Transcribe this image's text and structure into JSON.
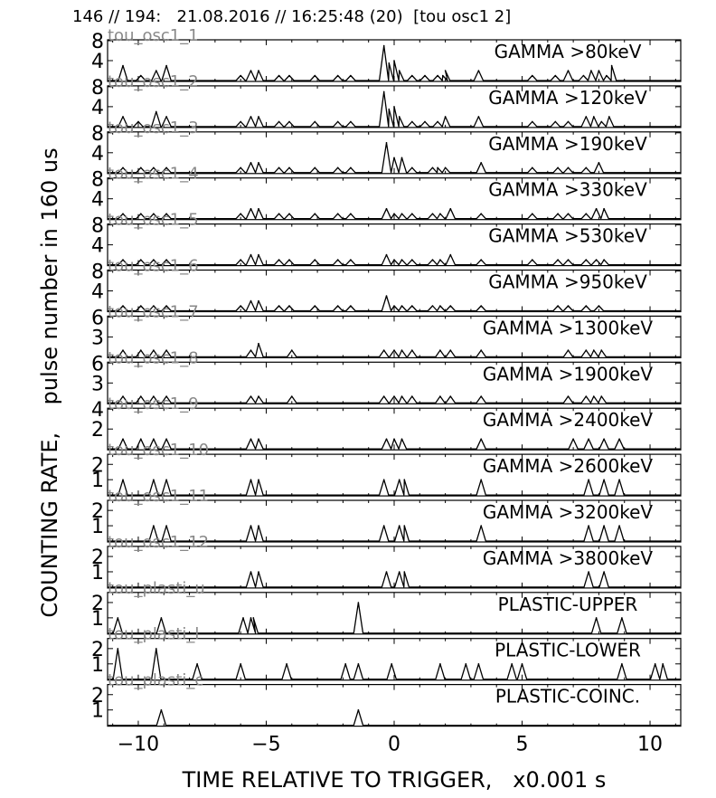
{
  "header": {
    "text": "146 // 194:   21.08.2016 // 16:25:48 (20)  [tou osc1 2]"
  },
  "chart_data": {
    "type": "line",
    "xlabel": "TIME RELATIVE TO TRIGGER,   x0.001 s",
    "ylabel": "COUNTING RATE,    pulse number in 160 us",
    "xlim": [
      -11.2,
      11.2
    ],
    "xticks": [
      -10,
      -5,
      0,
      5,
      10
    ],
    "xtick_labels": [
      "−10",
      "−5",
      "0",
      "5",
      "10"
    ],
    "panels": [
      {
        "channel": "tou_osc1_1",
        "label": "GAMMA >80keV",
        "ylim": [
          0,
          8
        ],
        "yticks": [
          8,
          4
        ],
        "points": [
          [
            -10.6,
            3
          ],
          [
            -9.9,
            1
          ],
          [
            -9.3,
            2
          ],
          [
            -8.9,
            3
          ],
          [
            -6.0,
            1
          ],
          [
            -5.6,
            2
          ],
          [
            -5.3,
            2
          ],
          [
            -4.5,
            1
          ],
          [
            -4.1,
            1
          ],
          [
            -3.1,
            1
          ],
          [
            -2.2,
            1
          ],
          [
            -1.7,
            1
          ],
          [
            -0.4,
            7
          ],
          [
            -0.2,
            3.5
          ],
          [
            0.0,
            4
          ],
          [
            0.2,
            2
          ],
          [
            0.7,
            1
          ],
          [
            1.2,
            1
          ],
          [
            1.7,
            1
          ],
          [
            1.9,
            1
          ],
          [
            2.0,
            2
          ],
          [
            3.3,
            2
          ],
          [
            5.4,
            1
          ],
          [
            6.3,
            1
          ],
          [
            6.8,
            2
          ],
          [
            7.4,
            1
          ],
          [
            7.7,
            2
          ],
          [
            8.0,
            2
          ],
          [
            8.3,
            1
          ],
          [
            8.5,
            3
          ]
        ]
      },
      {
        "channel": "tou_osc1_2",
        "label": "GAMMA >120keV",
        "ylim": [
          0,
          8
        ],
        "yticks": [
          8,
          4
        ],
        "points": [
          [
            -10.6,
            2
          ],
          [
            -10.0,
            1
          ],
          [
            -9.3,
            3
          ],
          [
            -8.9,
            2
          ],
          [
            -6.0,
            1
          ],
          [
            -5.6,
            2
          ],
          [
            -5.3,
            2
          ],
          [
            -4.5,
            1
          ],
          [
            -4.1,
            1
          ],
          [
            -3.1,
            1
          ],
          [
            -2.2,
            1
          ],
          [
            -1.7,
            1
          ],
          [
            -0.4,
            7
          ],
          [
            -0.2,
            3.5
          ],
          [
            0.0,
            4
          ],
          [
            0.2,
            2
          ],
          [
            0.7,
            1
          ],
          [
            1.2,
            1
          ],
          [
            1.7,
            1
          ],
          [
            2.0,
            2
          ],
          [
            3.3,
            2
          ],
          [
            5.4,
            1
          ],
          [
            6.3,
            1
          ],
          [
            6.8,
            1
          ],
          [
            7.5,
            2
          ],
          [
            7.8,
            2
          ],
          [
            8.1,
            1
          ],
          [
            8.4,
            2
          ]
        ]
      },
      {
        "channel": "tou_osc1_3",
        "label": "GAMMA >190keV",
        "ylim": [
          0,
          8
        ],
        "yticks": [
          8,
          4
        ],
        "points": [
          [
            -10.6,
            1
          ],
          [
            -9.9,
            1
          ],
          [
            -9.4,
            1
          ],
          [
            -8.9,
            1
          ],
          [
            -6.0,
            1
          ],
          [
            -5.6,
            2
          ],
          [
            -5.3,
            2
          ],
          [
            -4.5,
            1
          ],
          [
            -4.1,
            1
          ],
          [
            -3.1,
            1
          ],
          [
            -2.2,
            1
          ],
          [
            -1.7,
            1
          ],
          [
            -0.3,
            6
          ],
          [
            0.0,
            3
          ],
          [
            0.3,
            3
          ],
          [
            0.7,
            1
          ],
          [
            1.5,
            1
          ],
          [
            1.7,
            1
          ],
          [
            2.0,
            1
          ],
          [
            3.4,
            2
          ],
          [
            5.4,
            1
          ],
          [
            6.4,
            1
          ],
          [
            6.8,
            1
          ],
          [
            7.5,
            1
          ],
          [
            8.0,
            2
          ]
        ]
      },
      {
        "channel": "tou_osc1_4",
        "label": "GAMMA >330keV",
        "ylim": [
          0,
          8
        ],
        "yticks": [
          8,
          4
        ],
        "points": [
          [
            -10.6,
            1
          ],
          [
            -9.9,
            1
          ],
          [
            -9.4,
            1
          ],
          [
            -8.9,
            1
          ],
          [
            -6.0,
            1
          ],
          [
            -5.6,
            2
          ],
          [
            -5.3,
            2
          ],
          [
            -4.5,
            1
          ],
          [
            -4.1,
            1
          ],
          [
            -3.1,
            1
          ],
          [
            -2.2,
            1
          ],
          [
            -1.7,
            1
          ],
          [
            -0.3,
            2
          ],
          [
            0.0,
            1
          ],
          [
            0.3,
            1
          ],
          [
            0.7,
            1
          ],
          [
            1.5,
            1
          ],
          [
            1.8,
            1
          ],
          [
            2.2,
            2
          ],
          [
            3.4,
            1
          ],
          [
            5.4,
            1
          ],
          [
            6.4,
            1
          ],
          [
            6.8,
            1
          ],
          [
            7.5,
            1
          ],
          [
            7.9,
            2
          ],
          [
            8.2,
            2
          ]
        ]
      },
      {
        "channel": "tou_osc1_5",
        "label": "GAMMA >530keV",
        "ylim": [
          0,
          8
        ],
        "yticks": [
          8,
          4
        ],
        "points": [
          [
            -10.6,
            1
          ],
          [
            -9.9,
            1
          ],
          [
            -9.4,
            1
          ],
          [
            -8.9,
            1
          ],
          [
            -6.0,
            1
          ],
          [
            -5.6,
            2
          ],
          [
            -5.3,
            2
          ],
          [
            -4.5,
            1
          ],
          [
            -4.1,
            1
          ],
          [
            -3.1,
            1
          ],
          [
            -2.2,
            1
          ],
          [
            -1.7,
            1
          ],
          [
            -0.3,
            2
          ],
          [
            0.0,
            1
          ],
          [
            0.3,
            1
          ],
          [
            0.7,
            1
          ],
          [
            1.5,
            1
          ],
          [
            1.8,
            1
          ],
          [
            2.2,
            2
          ],
          [
            3.4,
            1
          ],
          [
            5.4,
            1
          ],
          [
            6.4,
            1
          ],
          [
            6.8,
            1
          ],
          [
            7.5,
            1
          ],
          [
            7.9,
            1
          ],
          [
            8.2,
            1
          ]
        ]
      },
      {
        "channel": "tou_osc1_6",
        "label": "GAMMA >950keV",
        "ylim": [
          0,
          8
        ],
        "yticks": [
          8,
          4
        ],
        "points": [
          [
            -10.6,
            1
          ],
          [
            -9.9,
            1
          ],
          [
            -9.4,
            1
          ],
          [
            -8.9,
            1
          ],
          [
            -6.0,
            1
          ],
          [
            -5.6,
            2
          ],
          [
            -5.3,
            2
          ],
          [
            -4.5,
            1
          ],
          [
            -4.1,
            1
          ],
          [
            -3.1,
            1
          ],
          [
            -2.2,
            1
          ],
          [
            -1.7,
            1
          ],
          [
            -0.3,
            3
          ],
          [
            0.0,
            1
          ],
          [
            0.3,
            1
          ],
          [
            0.7,
            1
          ],
          [
            1.5,
            1
          ],
          [
            1.8,
            1
          ],
          [
            2.2,
            1
          ],
          [
            3.4,
            1
          ],
          [
            6.4,
            1
          ],
          [
            6.8,
            1
          ],
          [
            7.5,
            1
          ],
          [
            8.0,
            1
          ]
        ]
      },
      {
        "channel": "tou_osc1_7",
        "label": "GAMMA >1300keV",
        "ylim": [
          0,
          6
        ],
        "yticks": [
          6,
          3
        ],
        "points": [
          [
            -10.6,
            1
          ],
          [
            -9.9,
            1
          ],
          [
            -9.4,
            1
          ],
          [
            -8.9,
            1
          ],
          [
            -5.6,
            1
          ],
          [
            -5.3,
            2
          ],
          [
            -4.0,
            1
          ],
          [
            -0.4,
            1
          ],
          [
            0.0,
            1
          ],
          [
            0.3,
            1
          ],
          [
            0.7,
            1
          ],
          [
            1.8,
            1
          ],
          [
            2.2,
            1
          ],
          [
            3.4,
            1
          ],
          [
            6.8,
            1
          ],
          [
            7.5,
            1
          ],
          [
            7.8,
            1
          ],
          [
            8.1,
            1
          ]
        ]
      },
      {
        "channel": "tou_osc1_8",
        "label": "GAMMA >1900keV",
        "ylim": [
          0,
          6
        ],
        "yticks": [
          6,
          3
        ],
        "points": [
          [
            -10.6,
            1
          ],
          [
            -9.9,
            1
          ],
          [
            -9.4,
            1
          ],
          [
            -8.9,
            1
          ],
          [
            -5.6,
            1
          ],
          [
            -5.3,
            1
          ],
          [
            -4.0,
            1
          ],
          [
            -0.4,
            1
          ],
          [
            0.0,
            1
          ],
          [
            0.3,
            1
          ],
          [
            0.7,
            1
          ],
          [
            1.8,
            1
          ],
          [
            2.2,
            1
          ],
          [
            3.4,
            1
          ],
          [
            6.8,
            1
          ],
          [
            7.5,
            1
          ],
          [
            7.8,
            1
          ],
          [
            8.1,
            1
          ]
        ]
      },
      {
        "channel": "tou_osc1_9",
        "label": "GAMMA >2400keV",
        "ylim": [
          0,
          4
        ],
        "yticks": [
          4,
          2
        ],
        "points": [
          [
            -10.6,
            1
          ],
          [
            -9.9,
            1
          ],
          [
            -9.4,
            1
          ],
          [
            -8.9,
            1
          ],
          [
            -5.6,
            1
          ],
          [
            -5.3,
            1
          ],
          [
            -0.3,
            1
          ],
          [
            0.0,
            1
          ],
          [
            0.3,
            1
          ],
          [
            3.4,
            1
          ],
          [
            7.0,
            1
          ],
          [
            7.6,
            1
          ],
          [
            8.2,
            1
          ],
          [
            8.8,
            1
          ]
        ]
      },
      {
        "channel": "tou_osc1_10",
        "label": "GAMMA >2600keV",
        "ylim": [
          0,
          2.6
        ],
        "yticks": [
          2,
          1
        ],
        "points": [
          [
            -10.6,
            1
          ],
          [
            -9.4,
            1
          ],
          [
            -8.9,
            1
          ],
          [
            -5.6,
            1
          ],
          [
            -5.3,
            1
          ],
          [
            -0.4,
            1
          ],
          [
            0.2,
            1
          ],
          [
            0.4,
            1
          ],
          [
            3.4,
            1
          ],
          [
            7.6,
            1
          ],
          [
            8.2,
            1
          ],
          [
            8.8,
            1
          ]
        ]
      },
      {
        "channel": "tou_osc1_11",
        "label": "GAMMA >3200keV",
        "ylim": [
          0,
          2.6
        ],
        "yticks": [
          2,
          1
        ],
        "points": [
          [
            -9.4,
            1
          ],
          [
            -8.9,
            1
          ],
          [
            -5.6,
            1
          ],
          [
            -5.3,
            1
          ],
          [
            -0.4,
            1
          ],
          [
            0.2,
            1
          ],
          [
            0.4,
            1
          ],
          [
            3.4,
            1
          ],
          [
            7.6,
            1
          ],
          [
            8.2,
            1
          ],
          [
            8.8,
            1
          ]
        ]
      },
      {
        "channel": "tou_osc1_12",
        "label": "GAMMA >3800keV",
        "ylim": [
          0,
          2.6
        ],
        "yticks": [
          2,
          1
        ],
        "points": [
          [
            -5.6,
            1
          ],
          [
            -5.3,
            1
          ],
          [
            -0.3,
            1
          ],
          [
            0.2,
            1
          ],
          [
            0.4,
            1
          ],
          [
            7.6,
            1
          ],
          [
            8.2,
            1
          ]
        ]
      },
      {
        "channel": "tou_plasti_u",
        "label": "PLASTIC-UPPER",
        "ylim": [
          0,
          2.6
        ],
        "yticks": [
          2,
          1
        ],
        "points": [
          [
            -10.8,
            1
          ],
          [
            -9.1,
            1
          ],
          [
            -5.9,
            1
          ],
          [
            -5.6,
            1
          ],
          [
            -5.5,
            1
          ],
          [
            -1.4,
            2
          ],
          [
            7.9,
            1
          ],
          [
            8.9,
            1
          ]
        ]
      },
      {
        "channel": "tou_plasti_l",
        "label": "PLASTIC-LOWER",
        "ylim": [
          0,
          2.6
        ],
        "yticks": [
          2,
          1
        ],
        "points": [
          [
            -10.8,
            2
          ],
          [
            -9.3,
            2
          ],
          [
            -7.7,
            1
          ],
          [
            -6.0,
            1
          ],
          [
            -4.2,
            1
          ],
          [
            -1.9,
            1
          ],
          [
            -1.4,
            1
          ],
          [
            -0.1,
            1
          ],
          [
            1.8,
            1
          ],
          [
            2.8,
            1
          ],
          [
            3.3,
            1
          ],
          [
            4.6,
            1
          ],
          [
            5.0,
            1
          ],
          [
            8.9,
            1
          ],
          [
            10.2,
            1
          ],
          [
            10.5,
            1
          ]
        ]
      },
      {
        "channel": "tou_plasti_c",
        "label": "PLASTIC-COINC.",
        "ylim": [
          0,
          2.6
        ],
        "yticks": [
          2,
          1
        ],
        "points": [
          [
            -9.1,
            1
          ],
          [
            -1.4,
            1
          ]
        ]
      }
    ]
  }
}
